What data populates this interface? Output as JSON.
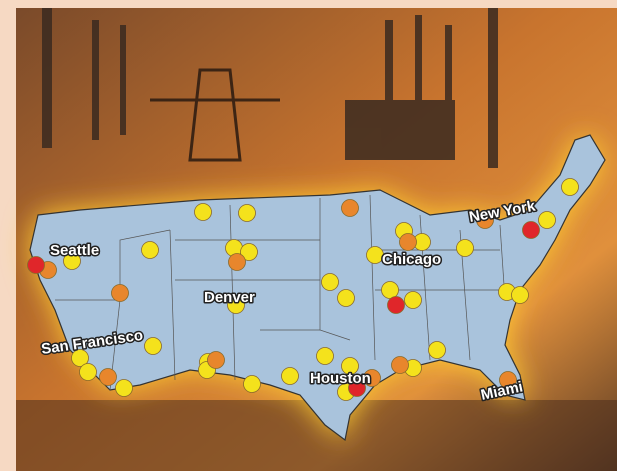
{
  "labels": [
    "Seattle",
    "New York",
    "Chicago",
    "Denver",
    "San Francisco",
    "Houston",
    "Miami"
  ]
}
